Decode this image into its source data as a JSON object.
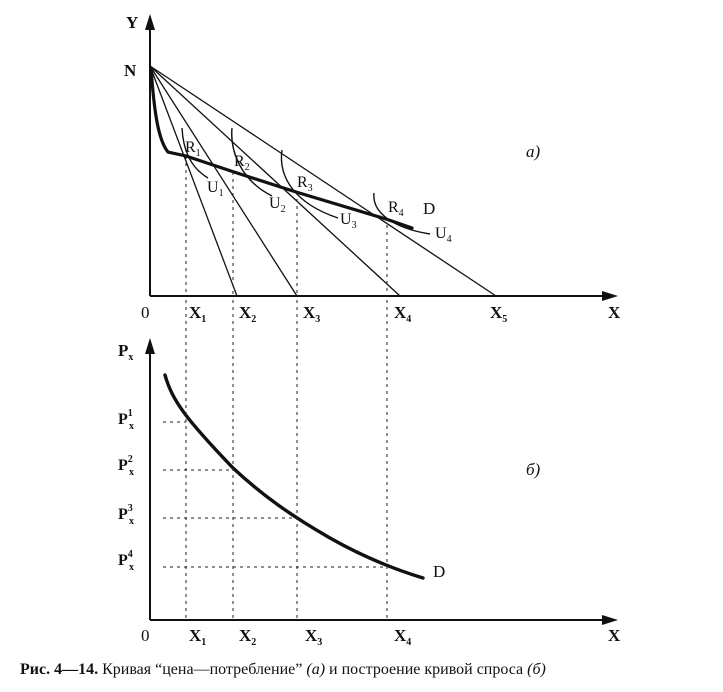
{
  "top_panel": {
    "panel_label": "a)",
    "y_axis_label": "Y",
    "x_axis_label": "X",
    "origin_label": "0",
    "n_label": "N",
    "x_ticks": [
      {
        "main": "X",
        "sub": "1"
      },
      {
        "main": "X",
        "sub": "2"
      },
      {
        "main": "X",
        "sub": "3"
      },
      {
        "main": "X",
        "sub": "4"
      },
      {
        "main": "X",
        "sub": "5"
      }
    ],
    "points": [
      {
        "main": "R",
        "sub": "1"
      },
      {
        "main": "R",
        "sub": "2"
      },
      {
        "main": "R",
        "sub": "3"
      },
      {
        "main": "R",
        "sub": "4"
      }
    ],
    "curves": [
      {
        "main": "U",
        "sub": "1"
      },
      {
        "main": "U",
        "sub": "2"
      },
      {
        "main": "U",
        "sub": "3"
      },
      {
        "main": "U",
        "sub": "4"
      }
    ],
    "curve_label": "D"
  },
  "bottom_panel": {
    "panel_label": "б)",
    "y_axis_main": "P",
    "y_axis_sub": "x",
    "x_axis_label": "X",
    "origin_label": "0",
    "price_labels": [
      {
        "main": "P",
        "sup": "1",
        "sub": "x"
      },
      {
        "main": "P",
        "sup": "2",
        "sub": "x"
      },
      {
        "main": "P",
        "sup": "3",
        "sub": "x"
      },
      {
        "main": "P",
        "sup": "4",
        "sub": "x"
      }
    ],
    "x_ticks": [
      {
        "main": "X",
        "sub": "1"
      },
      {
        "main": "X",
        "sub": "2"
      },
      {
        "main": "X",
        "sub": "3"
      },
      {
        "main": "X",
        "sub": "4"
      }
    ],
    "curve_label": "D"
  },
  "caption": {
    "number": "Рис. 4—14.",
    "text": " Кривая “цена—потребление” ",
    "part_a": "(а)",
    "middle": " и построение кривой спроса ",
    "part_b": "(б)"
  }
}
